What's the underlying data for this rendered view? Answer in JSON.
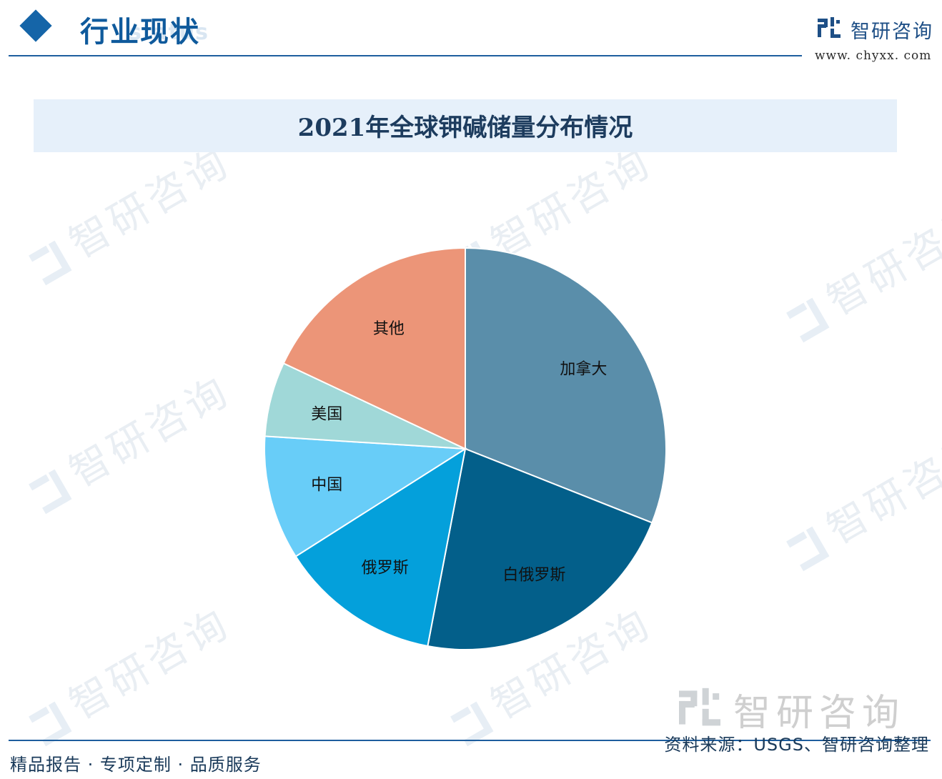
{
  "header": {
    "section_title": "行业现状",
    "section_subtitle_ghost": "status",
    "brand_name": "智研咨询",
    "brand_url": "www. chyxx. com"
  },
  "watermark": {
    "text": "智研咨询"
  },
  "chart_data": {
    "type": "pie",
    "title": "2021年全球钾碱储量分布情况",
    "start_angle_deg": 0,
    "direction": "clockwise",
    "slices": [
      {
        "label": "加拿大",
        "value": 31,
        "color": "#5a8eaa"
      },
      {
        "label": "白俄罗斯",
        "value": 22,
        "color": "#035f8a"
      },
      {
        "label": "俄罗斯",
        "value": 13,
        "color": "#04a0db"
      },
      {
        "label": "中国",
        "value": 10,
        "color": "#68cdf8"
      },
      {
        "label": "美国",
        "value": 6,
        "color": "#a0d8d8"
      },
      {
        "label": "其他",
        "value": 18,
        "color": "#ec9578"
      }
    ]
  },
  "footer": {
    "tagline": "精品报告 · 专项定制 · 品质服务",
    "source": "资料来源：USGS、智研咨询整理",
    "watermark_name": "智研咨询"
  }
}
